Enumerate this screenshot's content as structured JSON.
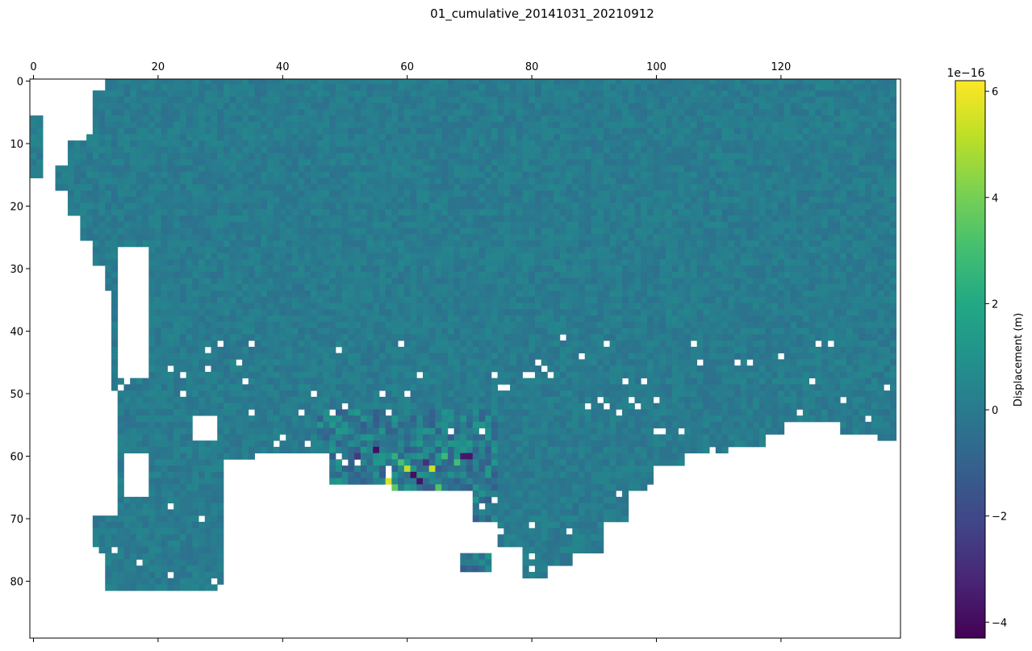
{
  "chart_data": {
    "type": "heatmap",
    "title": "01_cumulative_20141031_20210912",
    "x_ticks": [
      0,
      20,
      40,
      60,
      80,
      100,
      120
    ],
    "y_ticks": [
      0,
      10,
      20,
      30,
      40,
      50,
      60,
      70,
      80
    ],
    "xlim": [
      0,
      139
    ],
    "ylim": [
      89,
      0
    ],
    "x_axis_position": "top",
    "grid": false,
    "colormap": "viridis",
    "colorbar": {
      "label": "Displacement (m)",
      "offset_text": "1e−16",
      "ticks": [
        -4,
        -2,
        0,
        2,
        4,
        6
      ],
      "tick_labels": [
        "−4",
        "−2",
        "0",
        "2",
        "4",
        "6"
      ],
      "range": [
        -4.3,
        6.2
      ]
    },
    "typical_value": 0,
    "nodata_color": "#ffffff",
    "anomaly_cells": [
      {
        "col": 57,
        "row": 63,
        "value": 5.9
      },
      {
        "col": 57,
        "row": 64,
        "value": 5.6
      },
      {
        "col": 58,
        "row": 65,
        "value": 3.6
      },
      {
        "col": 60,
        "row": 62,
        "value": 5.2
      },
      {
        "col": 64,
        "row": 62,
        "value": 5.4
      },
      {
        "col": 62,
        "row": 64,
        "value": -3.8
      },
      {
        "col": 61,
        "row": 63,
        "value": -4.0
      },
      {
        "col": 55,
        "row": 59,
        "value": -3.9
      },
      {
        "col": 69,
        "row": 60,
        "value": -3.6
      },
      {
        "col": 70,
        "row": 60,
        "value": -3.7
      },
      {
        "col": 63,
        "row": 61,
        "value": -2.9
      },
      {
        "col": 59,
        "row": 61,
        "value": 3.1
      },
      {
        "col": 66,
        "row": 60,
        "value": 2.8
      },
      {
        "col": 65,
        "row": 65,
        "value": 3.3
      },
      {
        "col": 68,
        "row": 61,
        "value": 3.0
      },
      {
        "col": 52,
        "row": 60,
        "value": -2.6
      },
      {
        "col": 58,
        "row": 60,
        "value": 2.4
      }
    ]
  }
}
